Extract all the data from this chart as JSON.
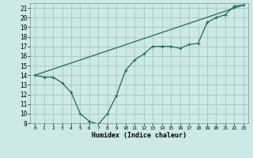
{
  "xlabel": "Humidex (Indice chaleur)",
  "ylabel": "",
  "bg_color": "#cce8e8",
  "grid_color": "#aacccc",
  "line_color": "#1a6b5a",
  "xlim": [
    -0.5,
    23.5
  ],
  "ylim": [
    9,
    21.5
  ],
  "x_ticks": [
    0,
    1,
    2,
    3,
    4,
    5,
    6,
    7,
    8,
    9,
    10,
    11,
    12,
    13,
    14,
    15,
    16,
    17,
    18,
    19,
    20,
    21,
    22,
    23
  ],
  "y_ticks": [
    9,
    10,
    11,
    12,
    13,
    14,
    15,
    16,
    17,
    18,
    19,
    20,
    21
  ],
  "line1_x": [
    0,
    1,
    2,
    3,
    4,
    5,
    6,
    7,
    8,
    9,
    10,
    11,
    12,
    13,
    14,
    15,
    16,
    17,
    18,
    19,
    20,
    21,
    22,
    23
  ],
  "line1_y": [
    14.0,
    13.8,
    13.8,
    13.2,
    12.2,
    10.0,
    9.2,
    8.9,
    10.0,
    11.9,
    14.5,
    15.6,
    16.2,
    17.0,
    17.0,
    17.0,
    16.8,
    17.2,
    17.3,
    19.5,
    20.0,
    20.3,
    21.2,
    21.3
  ],
  "line2_x": [
    0,
    23
  ],
  "line2_y": [
    14.0,
    21.3
  ],
  "marker": "+"
}
